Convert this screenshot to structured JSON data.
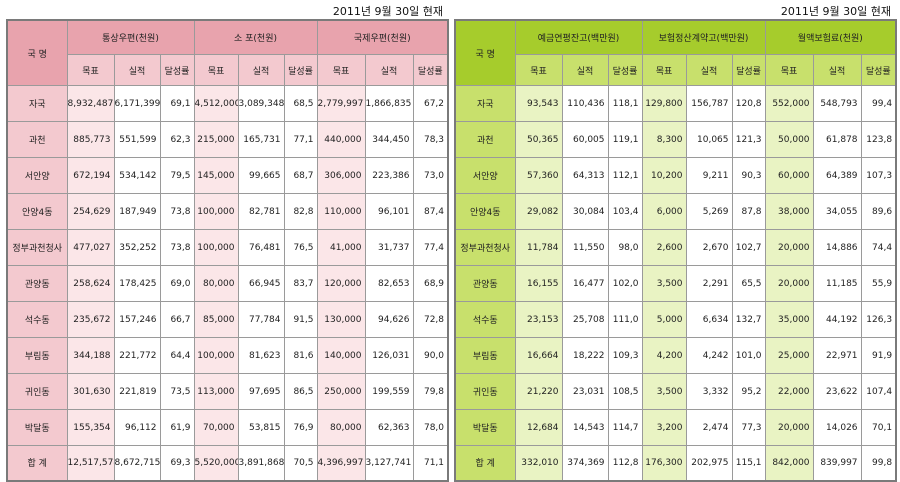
{
  "left": {
    "date": "2011년 9월 30일 현재",
    "region_header": "국 명",
    "groups": [
      "통상우편(천원)",
      "소 포(천원)",
      "국제우편(천원)"
    ],
    "subheaders": [
      "목표",
      "실적",
      "달성률"
    ],
    "rows": [
      {
        "name": "자국",
        "values": [
          "8,932,487",
          "6,171,399",
          "69,1",
          "4,512,000",
          "3,089,348",
          "68,5",
          "2,779,997",
          "1,866,835",
          "67,2"
        ]
      },
      {
        "name": "과천",
        "values": [
          "885,773",
          "551,599",
          "62,3",
          "215,000",
          "165,731",
          "77,1",
          "440,000",
          "344,450",
          "78,3"
        ]
      },
      {
        "name": "서안양",
        "values": [
          "672,194",
          "534,142",
          "79,5",
          "145,000",
          "99,665",
          "68,7",
          "306,000",
          "223,386",
          "73,0"
        ]
      },
      {
        "name": "안양4동",
        "values": [
          "254,629",
          "187,949",
          "73,8",
          "100,000",
          "82,781",
          "82,8",
          "110,000",
          "96,101",
          "87,4"
        ]
      },
      {
        "name": "정부과천청사",
        "values": [
          "477,027",
          "352,252",
          "73,8",
          "100,000",
          "76,481",
          "76,5",
          "41,000",
          "31,737",
          "77,4"
        ]
      },
      {
        "name": "관양동",
        "values": [
          "258,624",
          "178,425",
          "69,0",
          "80,000",
          "66,945",
          "83,7",
          "120,000",
          "82,653",
          "68,9"
        ]
      },
      {
        "name": "석수동",
        "values": [
          "235,672",
          "157,246",
          "66,7",
          "85,000",
          "77,784",
          "91,5",
          "130,000",
          "94,626",
          "72,8"
        ]
      },
      {
        "name": "부림동",
        "values": [
          "344,188",
          "221,772",
          "64,4",
          "100,000",
          "81,623",
          "81,6",
          "140,000",
          "126,031",
          "90,0"
        ]
      },
      {
        "name": "귀인동",
        "values": [
          "301,630",
          "221,819",
          "73,5",
          "113,000",
          "97,695",
          "86,5",
          "250,000",
          "199,559",
          "79,8"
        ]
      },
      {
        "name": "박달동",
        "values": [
          "155,354",
          "96,112",
          "61,9",
          "70,000",
          "53,815",
          "76,9",
          "80,000",
          "62,363",
          "78,0"
        ]
      },
      {
        "name": "합 계",
        "values": [
          "12,517,578",
          "8,672,715",
          "69,3",
          "5,520,000",
          "3,891,868",
          "70,5",
          "4,396,997",
          "3,127,741",
          "71,1"
        ]
      }
    ]
  },
  "right": {
    "date": "2011년 9월 30일 현재",
    "region_header": "국 명",
    "groups": [
      "예금연평잔고(백만원)",
      "보험정산계약고(백만원)",
      "월액보험료(천원)"
    ],
    "subheaders": [
      "목표",
      "실적",
      "달성률"
    ],
    "rows": [
      {
        "name": "자국",
        "values": [
          "93,543",
          "110,436",
          "118,1",
          "129,800",
          "156,787",
          "120,8",
          "552,000",
          "548,793",
          "99,4"
        ]
      },
      {
        "name": "과천",
        "values": [
          "50,365",
          "60,005",
          "119,1",
          "8,300",
          "10,065",
          "121,3",
          "50,000",
          "61,878",
          "123,8"
        ]
      },
      {
        "name": "서안양",
        "values": [
          "57,360",
          "64,313",
          "112,1",
          "10,200",
          "9,211",
          "90,3",
          "60,000",
          "64,389",
          "107,3"
        ]
      },
      {
        "name": "안양4동",
        "values": [
          "29,082",
          "30,084",
          "103,4",
          "6,000",
          "5,269",
          "87,8",
          "38,000",
          "34,055",
          "89,6"
        ]
      },
      {
        "name": "정부과천청사",
        "values": [
          "11,784",
          "11,550",
          "98,0",
          "2,600",
          "2,670",
          "102,7",
          "20,000",
          "14,886",
          "74,4"
        ]
      },
      {
        "name": "관양동",
        "values": [
          "16,155",
          "16,477",
          "102,0",
          "3,500",
          "2,291",
          "65,5",
          "20,000",
          "11,185",
          "55,9"
        ]
      },
      {
        "name": "석수동",
        "values": [
          "23,153",
          "25,708",
          "111,0",
          "5,000",
          "6,634",
          "132,7",
          "35,000",
          "44,192",
          "126,3"
        ]
      },
      {
        "name": "부림동",
        "values": [
          "16,664",
          "18,222",
          "109,3",
          "4,200",
          "4,242",
          "101,0",
          "25,000",
          "22,971",
          "91,9"
        ]
      },
      {
        "name": "귀인동",
        "values": [
          "21,220",
          "23,031",
          "108,5",
          "3,500",
          "3,332",
          "95,2",
          "22,000",
          "23,622",
          "107,4"
        ]
      },
      {
        "name": "박달동",
        "values": [
          "12,684",
          "14,543",
          "114,7",
          "3,200",
          "2,474",
          "77,3",
          "20,000",
          "14,026",
          "70,1"
        ]
      },
      {
        "name": "합 계",
        "values": [
          "332,010",
          "374,369",
          "112,8",
          "176,300",
          "202,975",
          "115,1",
          "842,000",
          "839,997",
          "99,8"
        ]
      }
    ]
  }
}
